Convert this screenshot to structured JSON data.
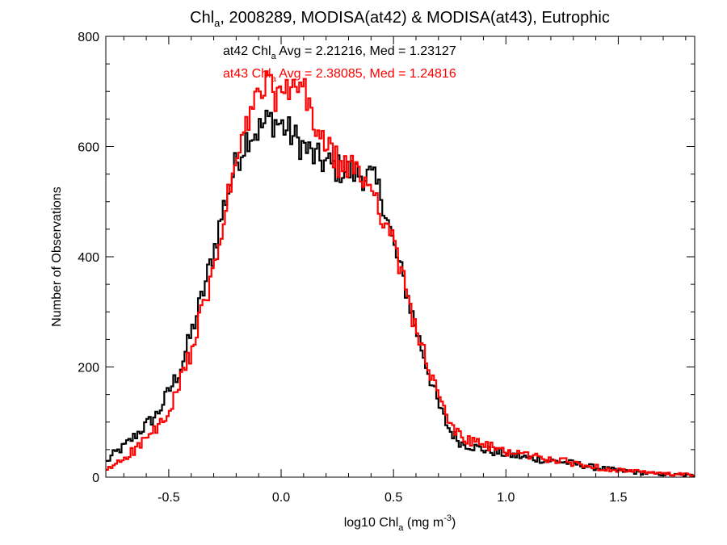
{
  "chart_data": {
    "type": "line",
    "title": {
      "pre": "Chl",
      "sub": "a",
      "post": ", 2008289, MODISA(at42) & MODISA(at43), Eutrophic"
    },
    "xlabel": {
      "pre": "log10 Chl",
      "sub": "a",
      "mid": " (mg m",
      "sup": "-3",
      "post": ")"
    },
    "ylabel": "Number of Observations",
    "xlim": [
      -0.78,
      1.84
    ],
    "ylim": [
      0,
      800
    ],
    "xticks": [
      -0.5,
      0.0,
      0.5,
      1.0,
      1.5
    ],
    "xtick_labels": [
      "-0.5",
      "0.0",
      "0.5",
      "1.0",
      "1.5"
    ],
    "yticks": [
      0,
      200,
      400,
      600,
      800
    ],
    "ytick_labels": [
      "0",
      "200",
      "400",
      "600",
      "800"
    ],
    "step": 0.01,
    "annotations": [
      {
        "series": "at42",
        "pre": "at42 Chl",
        "sub": "a",
        "post": " Avg = 2.21216, Med = 1.23127",
        "color": "#000000"
      },
      {
        "series": "at43",
        "pre": "at43 Chl",
        "sub": "a",
        "post": " Avg = 2.38085, Med = 1.24816",
        "color": "#ff0000"
      }
    ],
    "grid": false,
    "series": [
      {
        "name": "at42",
        "color": "#000000",
        "x": [
          -0.78,
          -0.75,
          -0.7,
          -0.65,
          -0.6,
          -0.55,
          -0.5,
          -0.45,
          -0.4,
          -0.35,
          -0.3,
          -0.25,
          -0.2,
          -0.15,
          -0.1,
          -0.05,
          0.0,
          0.05,
          0.1,
          0.15,
          0.2,
          0.25,
          0.3,
          0.35,
          0.4,
          0.45,
          0.5,
          0.55,
          0.6,
          0.65,
          0.7,
          0.75,
          0.8,
          0.9,
          1.0,
          1.1,
          1.2,
          1.3,
          1.4,
          1.5,
          1.6,
          1.7,
          1.84
        ],
        "y": [
          25,
          40,
          55,
          75,
          95,
          115,
          155,
          195,
          260,
          330,
          410,
          500,
          570,
          620,
          630,
          650,
          640,
          620,
          600,
          580,
          570,
          560,
          555,
          550,
          545,
          510,
          420,
          350,
          270,
          200,
          130,
          85,
          62,
          50,
          42,
          35,
          30,
          25,
          17,
          12,
          8,
          5,
          3
        ]
      },
      {
        "name": "at43",
        "color": "#ff0000",
        "x": [
          -0.78,
          -0.75,
          -0.7,
          -0.65,
          -0.6,
          -0.55,
          -0.5,
          -0.45,
          -0.4,
          -0.35,
          -0.3,
          -0.25,
          -0.2,
          -0.15,
          -0.1,
          -0.05,
          0.0,
          0.05,
          0.1,
          0.15,
          0.2,
          0.25,
          0.3,
          0.35,
          0.4,
          0.45,
          0.5,
          0.55,
          0.6,
          0.65,
          0.7,
          0.75,
          0.8,
          0.9,
          1.0,
          1.1,
          1.2,
          1.3,
          1.4,
          1.5,
          1.6,
          1.7,
          1.84
        ],
        "y": [
          10,
          20,
          35,
          50,
          70,
          90,
          110,
          170,
          230,
          300,
          370,
          480,
          570,
          640,
          700,
          710,
          680,
          710,
          700,
          640,
          600,
          570,
          560,
          550,
          530,
          480,
          420,
          350,
          270,
          205,
          145,
          100,
          72,
          58,
          47,
          40,
          32,
          26,
          18,
          13,
          9,
          6,
          4
        ]
      }
    ]
  }
}
